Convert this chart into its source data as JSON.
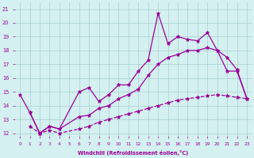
{
  "xlabel": "Windchill (Refroidissement éolien,°C)",
  "bg_color": "#d4f0f0",
  "grid_color": "#aacfcf",
  "line_color": "#990099",
  "xlim": [
    -0.5,
    23.5
  ],
  "ylim": [
    11.8,
    21.5
  ],
  "xticks": [
    0,
    1,
    2,
    3,
    4,
    5,
    6,
    7,
    8,
    9,
    10,
    11,
    12,
    13,
    14,
    15,
    16,
    17,
    18,
    19,
    20,
    21,
    22,
    23
  ],
  "yticks": [
    12,
    13,
    14,
    15,
    16,
    17,
    18,
    19,
    20,
    21
  ],
  "series1_x": [
    0,
    1,
    2,
    3,
    4,
    6,
    7,
    8,
    9,
    10,
    11,
    12,
    13,
    14,
    15,
    16,
    17,
    18,
    19,
    20,
    21,
    22,
    23
  ],
  "series1_y": [
    14.8,
    13.5,
    12.0,
    12.5,
    12.3,
    15.0,
    15.3,
    14.3,
    14.8,
    15.5,
    15.5,
    16.5,
    17.3,
    20.7,
    18.5,
    19.0,
    18.8,
    18.7,
    19.3,
    18.0,
    16.5,
    16.5,
    14.5
  ],
  "series2_x": [
    1,
    2,
    3,
    4,
    6,
    7,
    8,
    9,
    10,
    11,
    12,
    13,
    14,
    15,
    16,
    17,
    18,
    19,
    20,
    21,
    22,
    23
  ],
  "series2_y": [
    13.5,
    12.0,
    12.5,
    12.3,
    13.2,
    13.3,
    13.8,
    14.0,
    14.5,
    14.8,
    15.2,
    16.2,
    17.0,
    17.5,
    17.7,
    18.0,
    18.0,
    18.2,
    18.0,
    17.5,
    16.6,
    14.5
  ],
  "series3_x": [
    1,
    2,
    3,
    4,
    6,
    7,
    8,
    9,
    10,
    11,
    12,
    13,
    14,
    15,
    16,
    17,
    18,
    19,
    20,
    21,
    22,
    23
  ],
  "series3_y": [
    12.5,
    12.0,
    12.2,
    12.0,
    12.3,
    12.5,
    12.8,
    13.0,
    13.2,
    13.4,
    13.6,
    13.8,
    14.0,
    14.2,
    14.4,
    14.5,
    14.6,
    14.7,
    14.8,
    14.7,
    14.6,
    14.5
  ],
  "marker": "*",
  "markersize": 3.5,
  "linewidth": 0.9
}
